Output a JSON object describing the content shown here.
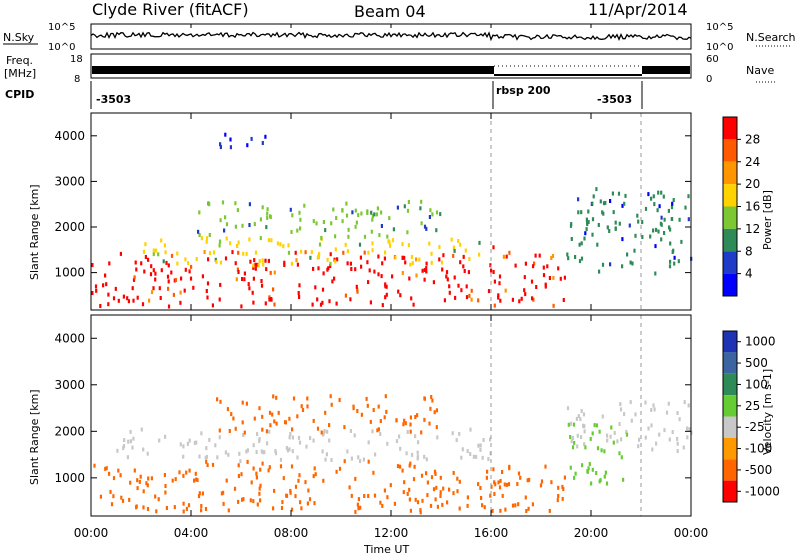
{
  "header": {
    "station": "Clyde River (fitACF)",
    "beam": "Beam 04",
    "date": "11/Apr/2014"
  },
  "sky_panel": {
    "label": "N.Sky",
    "left_ticks": [
      "10^5",
      "10^0"
    ],
    "right_ticks": [
      "10^5",
      "10^0"
    ],
    "right_label": "N.Search"
  },
  "freq_panel": {
    "label_line1": "Freq.",
    "label_line2": "[MHz]",
    "left_ticks": [
      "18",
      "8"
    ],
    "right_ticks": [
      "60",
      "0"
    ],
    "right_label": "Nave"
  },
  "cpid_panel": {
    "label": "CPID",
    "segments": [
      {
        "text": "-3503",
        "start_hour": 0,
        "label_hour": 0.3
      },
      {
        "text": "rbsp 200",
        "start_hour": 16,
        "label_hour": 16.1
      },
      {
        "text": "-3503",
        "start_hour": 22,
        "label_hour": 19.9
      }
    ]
  },
  "x_axis": {
    "label": "Time UT",
    "ticks": [
      "00:00",
      "04:00",
      "08:00",
      "12:00",
      "16:00",
      "20:00",
      "00:00"
    ],
    "tick_hours": [
      0,
      4,
      8,
      12,
      16,
      20,
      24
    ]
  },
  "power_panel": {
    "ylabel": "Slant Range [km]",
    "yticks": [
      "1000",
      "2000",
      "3000",
      "4000"
    ],
    "colorbar_label": "Power [dB]",
    "colorbar_ticks": [
      "28",
      "24",
      "20",
      "16",
      "12",
      "8",
      "4"
    ],
    "colors": [
      "#ff0000",
      "#ff5a00",
      "#ff9600",
      "#ffd200",
      "#7cc832",
      "#2e8b57",
      "#1e3cc8",
      "#0000ff"
    ]
  },
  "velocity_panel": {
    "ylabel": "Slant Range [km]",
    "yticks": [
      "1000",
      "2000",
      "3000",
      "4000"
    ],
    "colorbar_label": "Velocity [m s-1]",
    "colorbar_ticks": [
      "1000",
      "500",
      "100",
      "25",
      "-25",
      "-100",
      "-500",
      "-1000"
    ],
    "colors": [
      "#1e32b4",
      "#3c64a0",
      "#2e8b57",
      "#66cc33",
      "#c8c8c8",
      "#ff9900",
      "#ff6600",
      "#ff0000"
    ]
  },
  "chart_data": [
    {
      "type": "heatmap",
      "title": "Power",
      "xlabel": "Time UT",
      "ylabel": "Slant Range [km]",
      "xlim": [
        0,
        24
      ],
      "ylim": [
        180,
        4500
      ],
      "colorbar": {
        "label": "Power [dB]",
        "range": [
          0,
          32
        ],
        "ticks": [
          4,
          8,
          12,
          16,
          20,
          24,
          28
        ]
      },
      "bands": [
        {
          "t0": 0.0,
          "t1": 16.0,
          "r0": 300,
          "r1": 1500,
          "level": 28
        },
        {
          "t0": 2.0,
          "t1": 15.5,
          "r0": 1200,
          "r1": 1800,
          "level": 18
        },
        {
          "t0": 4.0,
          "t1": 14.0,
          "r0": 1800,
          "r1": 2600,
          "level": 14
        },
        {
          "t0": 5.0,
          "t1": 7.0,
          "r0": 3700,
          "r1": 4100,
          "level": 6
        },
        {
          "t0": 16.0,
          "t1": 19.0,
          "r0": 300,
          "r1": 1600,
          "level": 28
        },
        {
          "t0": 19.0,
          "t1": 24.0,
          "r0": 1000,
          "r1": 2900,
          "level": 10
        }
      ]
    },
    {
      "type": "heatmap",
      "title": "Velocity",
      "xlabel": "Time UT",
      "ylabel": "Slant Range [km]",
      "xlim": [
        0,
        24
      ],
      "ylim": [
        180,
        4500
      ],
      "colorbar": {
        "label": "Velocity [m s-1]",
        "ticks": [
          1000,
          500,
          100,
          25,
          -25,
          -100,
          -500,
          -1000
        ]
      },
      "bands": [
        {
          "t0": 0.0,
          "t1": 19.0,
          "r0": 300,
          "r1": 1400,
          "velocity": -300
        },
        {
          "t0": 1.0,
          "t1": 16.0,
          "r0": 1400,
          "r1": 2100,
          "velocity": 0
        },
        {
          "t0": 5.0,
          "t1": 14.0,
          "r0": 2000,
          "r1": 2800,
          "velocity": -200
        },
        {
          "t0": 19.0,
          "t1": 24.0,
          "r0": 1600,
          "r1": 2700,
          "velocity": 0
        },
        {
          "t0": 19.0,
          "t1": 21.5,
          "r0": 900,
          "r1": 2200,
          "velocity": 80
        }
      ]
    }
  ]
}
